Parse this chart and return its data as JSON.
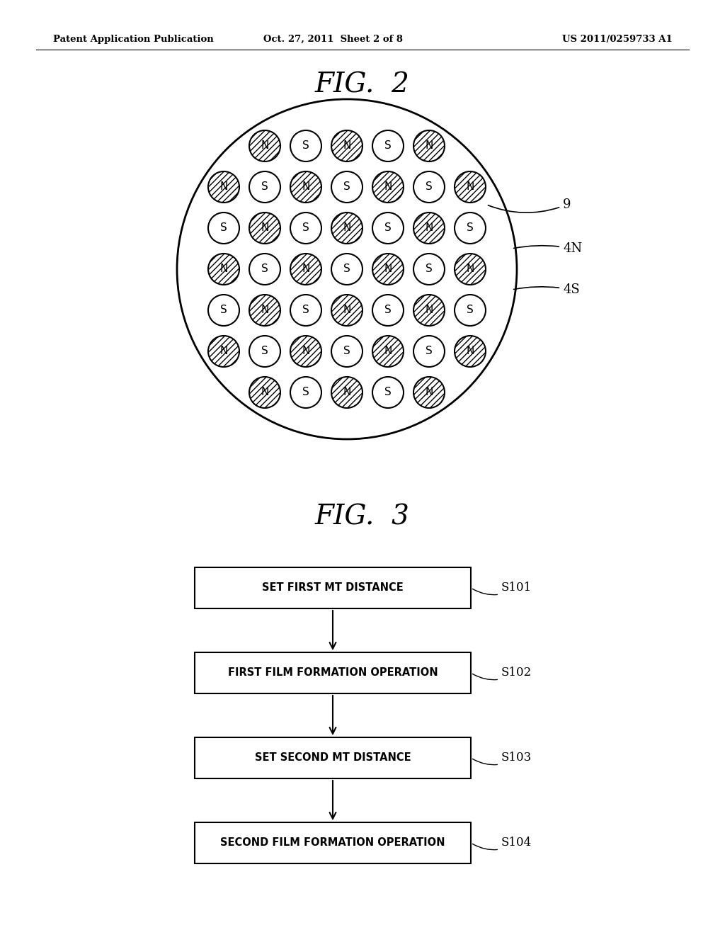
{
  "fig2_title": "FIG.  2",
  "fig3_title": "FIG.  3",
  "header_left": "Patent Application Publication",
  "header_center": "Oct. 27, 2011  Sheet 2 of 8",
  "header_right": "US 2011/0259733 A1",
  "label_9": "9",
  "label_4N": "4N",
  "label_4S": "4S",
  "flowchart_boxes": [
    {
      "label": "SET FIRST MT DISTANCE",
      "step": "S101"
    },
    {
      "label": "FIRST FILM FORMATION OPERATION",
      "step": "S102"
    },
    {
      "label": "SET SECOND MT DISTANCE",
      "step": "S103"
    },
    {
      "label": "SECOND FILM FORMATION OPERATION",
      "step": "S104"
    }
  ],
  "background": "#ffffff"
}
